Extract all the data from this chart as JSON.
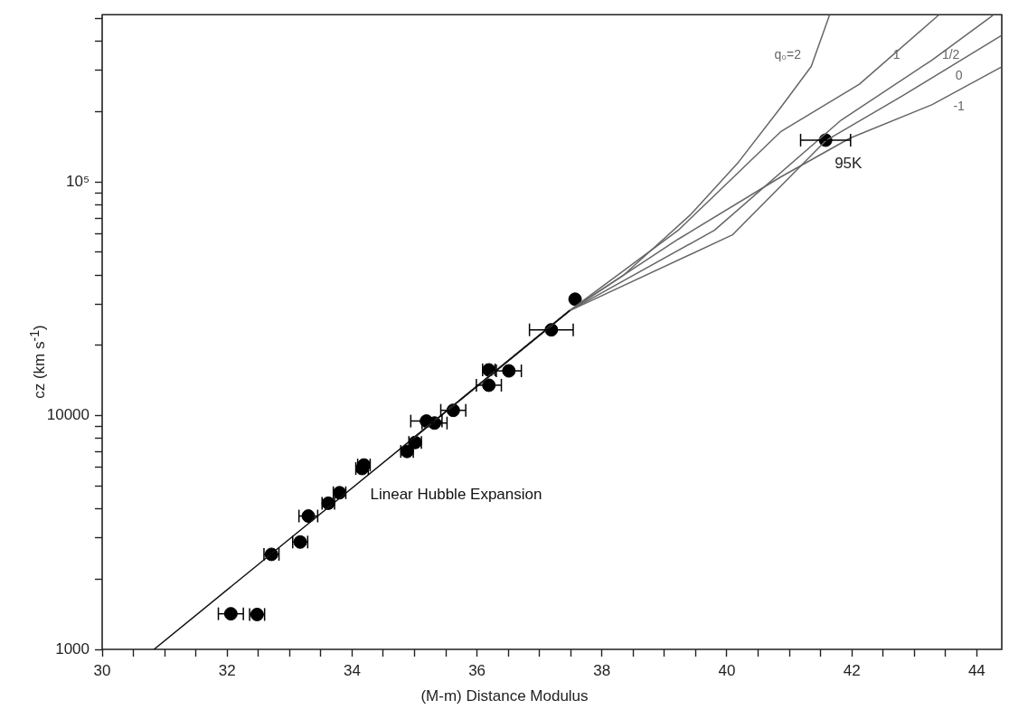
{
  "chart_data": {
    "type": "scatter",
    "xlabel": "(M-m) Distance Modulus",
    "ylabel": "cz (km s$^{-1}$)",
    "log": "y",
    "grid": false,
    "legend": false,
    "marker": "circle",
    "line_style": "solid",
    "xlim": [
      30,
      44.4
    ],
    "ylim": [
      1000,
      520000
    ],
    "xticks": [
      30,
      {
        "value": 30.5,
        "label": null
      },
      {
        "value": 31,
        "label": null
      },
      {
        "value": 31.5,
        "label": null
      },
      32,
      {
        "value": 32.5,
        "label": null
      },
      {
        "value": 33,
        "label": null
      },
      {
        "value": 33.5,
        "label": null
      },
      34,
      {
        "value": 34.5,
        "label": null
      },
      {
        "value": 35,
        "label": null
      },
      {
        "value": 35.5,
        "label": null
      },
      36,
      {
        "value": 36.5,
        "label": null
      },
      {
        "value": 37,
        "label": null
      },
      {
        "value": 37.5,
        "label": null
      },
      38,
      {
        "value": 38.5,
        "label": null
      },
      {
        "value": 39,
        "label": null
      },
      {
        "value": 39.5,
        "label": null
      },
      40,
      {
        "value": 40.5,
        "label": null
      },
      {
        "value": 41,
        "label": null
      },
      {
        "value": 41.5,
        "label": null
      },
      42,
      {
        "value": 42.5,
        "label": null
      },
      {
        "value": 43,
        "label": null
      },
      {
        "value": 43.5,
        "label": null
      },
      44
    ],
    "yticks": [
      1000,
      {
        "value": 2000,
        "label": null
      },
      {
        "value": 3000,
        "label": null
      },
      {
        "value": 4000,
        "label": null
      },
      {
        "value": 5000,
        "label": null
      },
      {
        "value": 6000,
        "label": null
      },
      {
        "value": 7000,
        "label": null
      },
      {
        "value": 8000,
        "label": null
      },
      {
        "value": 9000,
        "label": null
      },
      10000,
      {
        "value": 20000,
        "label": null
      },
      {
        "value": 30000,
        "label": null
      },
      {
        "value": 40000,
        "label": null
      },
      {
        "value": 50000,
        "label": null
      },
      {
        "value": 60000,
        "label": null
      },
      {
        "value": 70000,
        "label": null
      },
      {
        "value": 80000,
        "label": null
      },
      {
        "value": 90000,
        "label": null
      },
      {
        "value": 100000,
        "label": "10⁵"
      },
      {
        "value": 200000,
        "label": null
      },
      {
        "value": 300000,
        "label": null
      },
      {
        "value": 400000,
        "label": null
      },
      {
        "value": 500000,
        "label": null
      }
    ],
    "series": [
      {
        "type": "line",
        "marker": "none",
        "name": "Linear Hubble Expansion",
        "color": "#111111",
        "x": [
          30.83,
          35,
          37.48
        ],
        "values": [
          1000,
          8090,
          28100
        ]
      },
      {
        "type": "line",
        "marker": "none",
        "name": "q₀=2",
        "color": "#666666",
        "x": [
          35,
          37.48,
          38.35,
          39.41,
          40.19,
          40.86,
          41.35,
          41.64
        ],
        "values": [
          8090,
          28100,
          40000,
          72100,
          122000,
          208000,
          312000,
          515000
        ]
      },
      {
        "type": "line",
        "marker": "none",
        "name": "1",
        "color": "#666666",
        "x": [
          35,
          37.48,
          39.22,
          40.86,
          42.12,
          43.38
        ],
        "values": [
          8090,
          28100,
          62100,
          164000,
          262000,
          515000
        ]
      },
      {
        "type": "line",
        "marker": "none",
        "name": "1/2",
        "color": "#666666",
        "x": [
          35,
          37.48,
          39.8,
          41.83,
          43.28,
          44.25
        ],
        "values": [
          8090,
          28100,
          62100,
          184000,
          332000,
          515000
        ]
      },
      {
        "type": "line",
        "marker": "none",
        "name": "0",
        "color": "#666666",
        "x": [
          35,
          37.48,
          40.09,
          41.58,
          42.8,
          44.38
        ],
        "values": [
          8090,
          28100,
          59400,
          150000,
          233000,
          421000
        ]
      },
      {
        "type": "line",
        "marker": "none",
        "name": "-1",
        "color": "#666666",
        "x": [
          35,
          37.48,
          39.22,
          40.86,
          41.97,
          43.28,
          44.38
        ],
        "values": [
          8090,
          28100,
          56900,
          105000,
          154000,
          214000,
          309000
        ]
      },
      {
        "type": "scatter",
        "color": "#000000",
        "x": [
          32.06,
          32.48,
          32.71,
          33.17,
          33.3,
          33.62,
          33.8,
          34.16,
          34.19,
          34.88,
          35.01,
          35.19,
          35.32,
          35.62,
          36.19,
          36.19,
          36.51,
          37.19,
          37.57,
          41.58
        ],
        "values": [
          1420,
          1410,
          2550,
          2880,
          3720,
          4220,
          4680,
          5940,
          6150,
          7030,
          7680,
          9480,
          9300,
          10540,
          13500,
          15700,
          15550,
          23300,
          31500,
          151000
        ],
        "xerrors": [
          0.2,
          0.12,
          0.12,
          0.12,
          0.15,
          0.1,
          0.1,
          0.1,
          0.1,
          0.1,
          0.1,
          0.25,
          0.2,
          0.2,
          0.2,
          0.1,
          0.2,
          0.35,
          null,
          0.4
        ]
      }
    ],
    "annotations": [
      {
        "text": "95K",
        "x": 41.58,
        "y": 151000
      }
    ]
  }
}
